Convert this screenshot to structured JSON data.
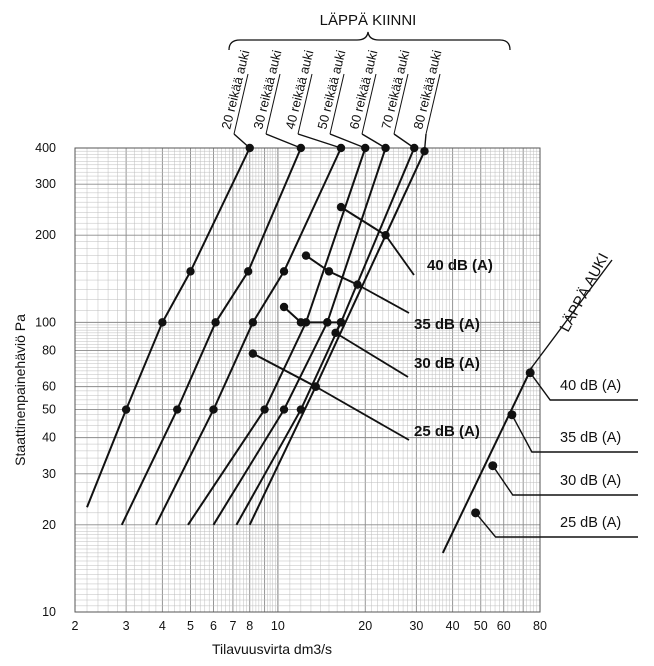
{
  "chart_data": {
    "type": "line",
    "xlabel": "Tilavuusvirta  dm3/s",
    "ylabel": "Staattinenpainehäviö  Pa",
    "xscale": "log",
    "yscale": "log",
    "xlim": [
      2,
      80
    ],
    "ylim": [
      10,
      400
    ],
    "x_ticks": [
      "2",
      "3",
      "4",
      "5",
      "6",
      "7",
      "8",
      "10",
      "20",
      "30",
      "40",
      "50",
      "60",
      "80"
    ],
    "y_ticks": [
      "10",
      "20",
      "30",
      "40",
      "50",
      "60",
      "80",
      "100",
      "200",
      "300",
      "400"
    ],
    "closed_group_label": "LÄPPÄ KIINNI",
    "open_group_label": "LÄPPÄ AUKI",
    "closed_series": [
      {
        "name": "20 reikää auki",
        "points": [
          [
            2.2,
            23
          ],
          [
            3.0,
            50
          ],
          [
            4.0,
            100
          ],
          [
            5.0,
            150
          ],
          [
            8.0,
            400
          ]
        ]
      },
      {
        "name": "30 reikää auki",
        "points": [
          [
            2.9,
            20
          ],
          [
            4.5,
            50
          ],
          [
            6.1,
            100
          ],
          [
            7.9,
            150
          ],
          [
            12.0,
            400
          ]
        ]
      },
      {
        "name": "40 reikää auki",
        "points": [
          [
            3.8,
            20
          ],
          [
            6.0,
            50
          ],
          [
            8.2,
            100
          ],
          [
            10.5,
            150
          ],
          [
            16.5,
            400
          ]
        ]
      },
      {
        "name": "50 reikää auki",
        "points": [
          [
            4.9,
            20
          ],
          [
            9.0,
            50
          ],
          [
            12.5,
            100
          ],
          [
            20.0,
            400
          ]
        ]
      },
      {
        "name": "60 reikää auki",
        "points": [
          [
            6.0,
            20
          ],
          [
            10.5,
            50
          ],
          [
            14.8,
            100
          ],
          [
            23.5,
            400
          ]
        ]
      },
      {
        "name": "70 reikää auki",
        "points": [
          [
            7.2,
            20
          ],
          [
            12.0,
            50
          ],
          [
            16.5,
            100
          ],
          [
            29.5,
            400
          ]
        ]
      },
      {
        "name": "80 reikää auki",
        "points": [
          [
            8.0,
            20
          ],
          [
            13.5,
            60
          ],
          [
            32.0,
            390
          ]
        ]
      }
    ],
    "closed_db_labels": [
      {
        "label": "40 dB (A)",
        "points": [
          [
            16.5,
            250
          ],
          [
            23.5,
            200
          ]
        ]
      },
      {
        "label": "35 dB (A)",
        "points": [
          [
            12.5,
            170
          ],
          [
            15.0,
            150
          ],
          [
            18.8,
            135
          ]
        ]
      },
      {
        "label": "30 dB (A)",
        "points": [
          [
            10.5,
            113
          ],
          [
            12.0,
            100
          ],
          [
            14.8,
            100
          ],
          [
            16.5,
            100
          ],
          [
            15.8,
            92
          ]
        ]
      },
      {
        "label": "25 dB (A)",
        "points": [
          [
            8.2,
            78
          ],
          [
            13.5,
            60
          ]
        ]
      }
    ],
    "open_series": {
      "name": "LÄPPÄ AUKI",
      "line": [
        [
          37,
          16
        ],
        [
          75,
          70
        ]
      ],
      "points": [
        {
          "label": "40 dB (A)",
          "x": 74,
          "y": 67
        },
        {
          "label": "35 dB (A)",
          "x": 64,
          "y": 48
        },
        {
          "label": "30 dB (A)",
          "x": 55,
          "y": 32
        },
        {
          "label": "25 dB (A)",
          "x": 48,
          "y": 22
        }
      ]
    }
  }
}
